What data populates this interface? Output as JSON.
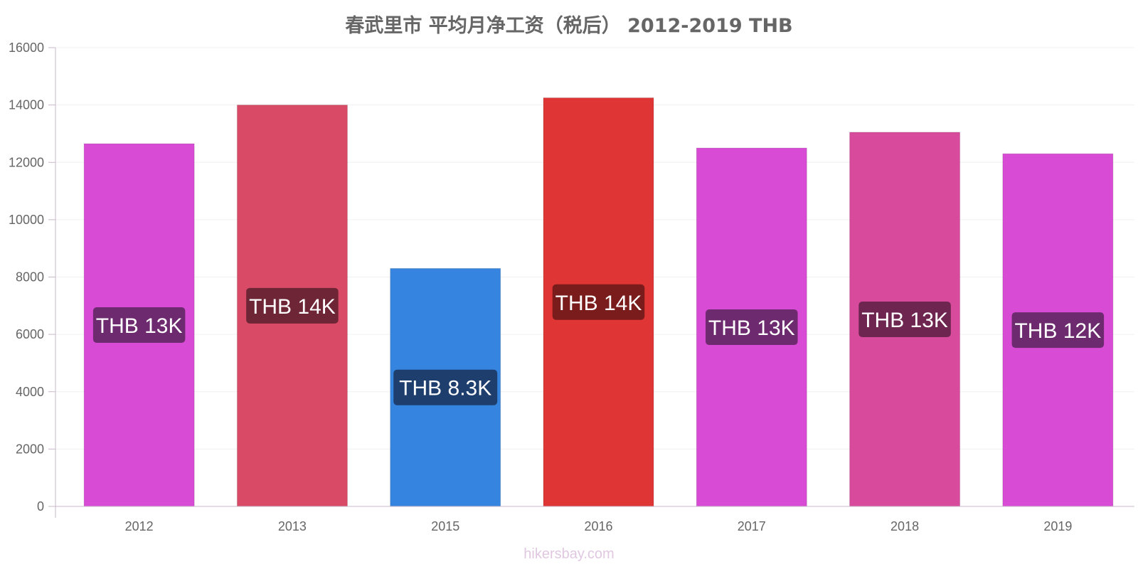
{
  "title": "春武里市 平均月净工资（税后） 2012-2019 THB",
  "watermark": "hikersbay.com",
  "chart_data": {
    "type": "bar",
    "title": "春武里市 平均月净工资（税后） 2012-2019 THB",
    "categories": [
      "2012",
      "2013",
      "2015",
      "2016",
      "2017",
      "2018",
      "2019"
    ],
    "values": [
      12650,
      14000,
      8300,
      14250,
      12500,
      13050,
      12300
    ],
    "data_labels": [
      "THB 13K",
      "THB 14K",
      "THB 8.3K",
      "THB 14K",
      "THB 13K",
      "THB 13K",
      "THB 12K"
    ],
    "bar_colors": [
      "#d84bd4",
      "#d84a66",
      "#3584e0",
      "#e03535",
      "#d84bd4",
      "#d84a9c",
      "#d84bd4"
    ],
    "label_bg_colors": [
      "#6e2a6e",
      "#6e2535",
      "#1e3f6e",
      "#7a1c1c",
      "#6e2a6e",
      "#6e2550",
      "#6e2a6e"
    ],
    "ylim": [
      0,
      16000
    ],
    "yticks": [
      0,
      2000,
      4000,
      6000,
      8000,
      10000,
      12000,
      14000,
      16000
    ],
    "grid": true,
    "xlabel": "",
    "ylabel": ""
  }
}
